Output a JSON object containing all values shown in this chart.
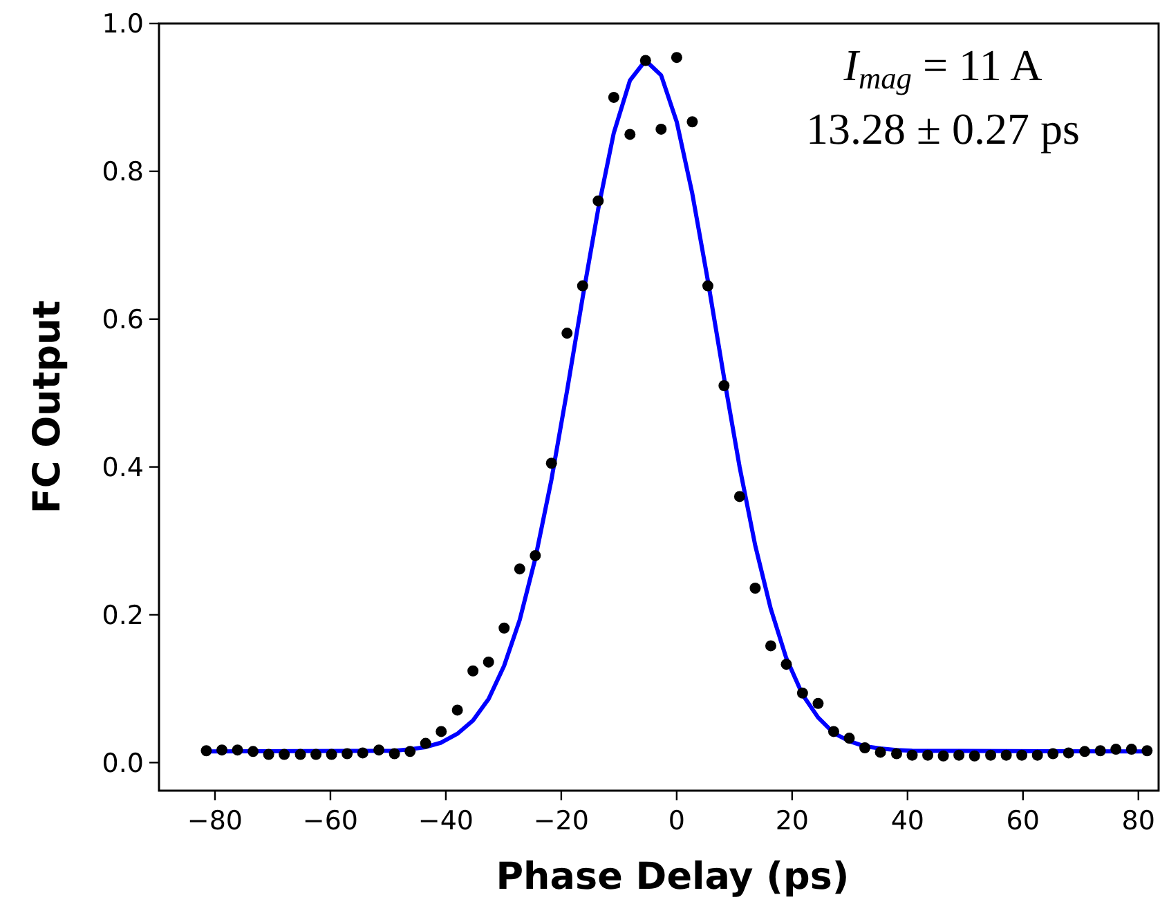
{
  "chart_data": {
    "type": "scatter",
    "xlabel": "Phase Delay (ps)",
    "ylabel": "FC Output",
    "annotations": [
      "I$_{mag}$ = 11 A",
      "13.28 ± 0.27 ps"
    ],
    "xlim": [
      -89.7,
      83.5
    ],
    "ylim": [
      -0.038,
      1.0
    ],
    "xticks": [
      {
        "value": -80,
        "label": "−80"
      },
      {
        "value": -60,
        "label": "−60"
      },
      {
        "value": -40,
        "label": "−40"
      },
      {
        "value": -20,
        "label": "−20"
      },
      0,
      20,
      40,
      60,
      80
    ],
    "yticks": [
      {
        "value": 0,
        "label": "0.0"
      },
      0.2,
      0.4,
      0.6,
      0.8,
      {
        "value": 1,
        "label": "1.0"
      }
    ],
    "grid": false,
    "series": [
      {
        "color": "#000000",
        "marker": "circle",
        "x": [
          -81.5,
          -78.8,
          -76.1,
          -73.4,
          -70.7,
          -68,
          -65.2,
          -62.5,
          -59.8,
          -57.1,
          -54.4,
          -51.6,
          -48.9,
          -46.2,
          -43.5,
          -40.8,
          -38,
          -35.3,
          -32.6,
          -29.9,
          -27.2,
          -24.5,
          -21.7,
          -19,
          -16.3,
          -13.6,
          -10.9,
          -8.1,
          -5.4,
          -2.7,
          0,
          2.7,
          5.4,
          8.2,
          10.9,
          13.6,
          16.3,
          19,
          21.8,
          24.5,
          27.2,
          29.9,
          32.6,
          35.3,
          38.1,
          40.8,
          43.5,
          46.2,
          48.9,
          51.6,
          54.4,
          57.1,
          59.8,
          62.5,
          65.2,
          67.9,
          70.7,
          73.4,
          76.1,
          78.8,
          81.5
        ],
        "values": [
          0.016,
          0.017,
          0.017,
          0.015,
          0.011,
          0.011,
          0.011,
          0.011,
          0.011,
          0.012,
          0.013,
          0.017,
          0.012,
          0.015,
          0.026,
          0.042,
          0.071,
          0.124,
          0.136,
          0.182,
          0.262,
          0.28,
          0.405,
          0.581,
          0.645,
          0.76,
          0.9,
          0.85,
          0.95,
          0.857,
          0.954,
          0.867,
          0.645,
          0.51,
          0.36,
          0.236,
          0.158,
          0.133,
          0.094,
          0.08,
          0.042,
          0.033,
          0.02,
          0.014,
          0.012,
          0.01,
          0.01,
          0.009,
          0.01,
          0.009,
          0.01,
          0.01,
          0.01,
          0.01,
          0.012,
          0.013,
          0.015,
          0.016,
          0.018,
          0.018,
          0.016
        ]
      },
      {
        "type": "line",
        "color": "#0000ff",
        "line_style": "solid",
        "marker": "none",
        "x": [
          -81.5,
          -48.9,
          -46.2,
          -43.5,
          -40.8,
          -38,
          -35.3,
          -32.6,
          -29.9,
          -27.2,
          -24.5,
          -21.7,
          -19,
          -16.3,
          -13.6,
          -10.9,
          -8.1,
          -5.4,
          -2.7,
          0,
          2.7,
          5.4,
          8.2,
          10.9,
          13.6,
          16.3,
          19,
          21.8,
          24.5,
          27.2,
          29.9,
          32.6,
          35.3,
          38.1,
          40.8,
          81.5
        ],
        "values": [
          0.015,
          0.016,
          0.018,
          0.021,
          0.027,
          0.039,
          0.057,
          0.086,
          0.131,
          0.193,
          0.276,
          0.383,
          0.503,
          0.629,
          0.749,
          0.852,
          0.923,
          0.95,
          0.93,
          0.867,
          0.77,
          0.652,
          0.521,
          0.4,
          0.294,
          0.208,
          0.141,
          0.092,
          0.061,
          0.04,
          0.029,
          0.022,
          0.019,
          0.017,
          0.016,
          0.015
        ]
      }
    ]
  }
}
